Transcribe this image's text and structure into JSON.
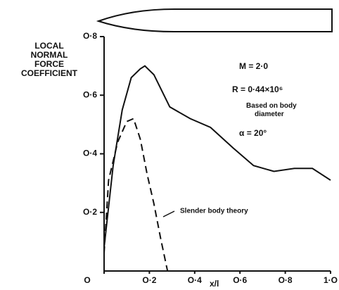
{
  "chart_data": {
    "type": "line",
    "y_label": "LOCAL NORMAL FORCE COEFFICIENT",
    "x_label": "x/l",
    "annotations": [
      "M = 2·0",
      "R = 0·44×10⁶",
      "Based on body diameter",
      "α = 20°"
    ],
    "xlim": [
      0,
      1.0
    ],
    "ylim": [
      0,
      0.8
    ],
    "xticks": [
      {
        "value": 0,
        "label": "O"
      },
      {
        "value": 0.2,
        "label": "O·2"
      },
      {
        "value": 0.4,
        "label": "O·4"
      },
      {
        "value": 0.6,
        "label": "O·6"
      },
      {
        "value": 0.8,
        "label": "O·8"
      },
      {
        "value": 1.0,
        "label": "1·O"
      }
    ],
    "yticks": [
      {
        "value": 0.2,
        "label": "O·2"
      },
      {
        "value": 0.4,
        "label": "O·4"
      },
      {
        "value": 0.6,
        "label": "O·6"
      },
      {
        "value": 0.8,
        "label": "O·8"
      }
    ],
    "series": [
      {
        "color": "#111111",
        "dash": false,
        "x": [
          0,
          0.04,
          0.08,
          0.12,
          0.16,
          0.18,
          0.22,
          0.29,
          0.38,
          0.47,
          0.57,
          0.66,
          0.75,
          0.84,
          0.92,
          1.0
        ],
        "values": [
          0.08,
          0.36,
          0.55,
          0.66,
          0.69,
          0.7,
          0.67,
          0.56,
          0.52,
          0.49,
          0.42,
          0.36,
          0.34,
          0.35,
          0.35,
          0.31
        ]
      },
      {
        "name": "Slender body theory",
        "color": "#111111",
        "dash": true,
        "x": [
          0,
          0.02,
          0.06,
          0.1,
          0.13,
          0.16,
          0.19,
          0.22,
          0.25,
          0.28
        ],
        "values": [
          0.06,
          0.31,
          0.44,
          0.51,
          0.52,
          0.45,
          0.33,
          0.23,
          0.11,
          0.0
        ]
      }
    ]
  }
}
